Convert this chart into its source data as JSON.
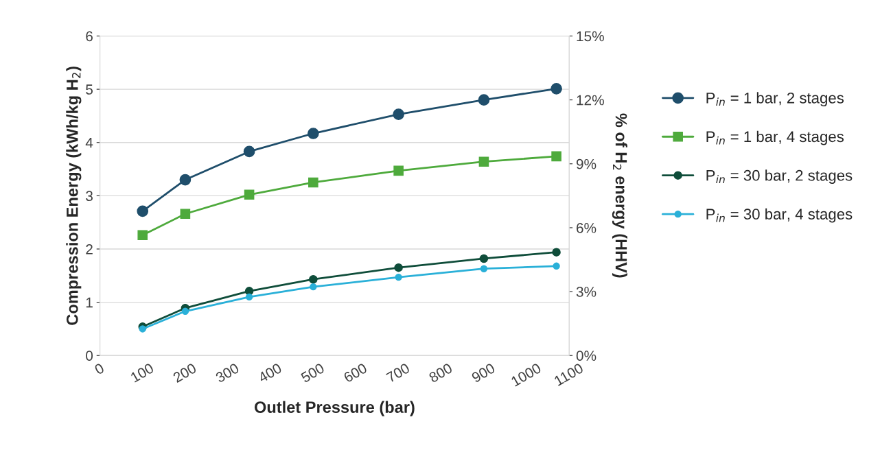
{
  "chart_data": {
    "type": "line",
    "xlabel": "Outlet Pressure (bar)",
    "ylabel": "Compression Energy (kWh/kg H$_{2}$)",
    "y2label": "% of H$_{2}$ energy (HHV)",
    "x": [
      100,
      200,
      350,
      500,
      700,
      900,
      1070
    ],
    "xlim": [
      0,
      1100
    ],
    "xticks": [
      0,
      100,
      200,
      300,
      400,
      500,
      600,
      700,
      800,
      900,
      1000,
      1100
    ],
    "ylim": [
      0,
      6
    ],
    "yticks": [
      0,
      1,
      2,
      3,
      4,
      5,
      6
    ],
    "y2lim": [
      0,
      15
    ],
    "y2ticks": [
      {
        "value": 0,
        "label": "0%"
      },
      {
        "value": 3,
        "label": "3%"
      },
      {
        "value": 6,
        "label": "6%"
      },
      {
        "value": 9,
        "label": "9%"
      },
      {
        "value": 12,
        "label": "12%"
      },
      {
        "value": 15,
        "label": "15%"
      }
    ],
    "grid": "y",
    "legend": "right",
    "line_style": "solid",
    "series": [
      {
        "name": "P$_{in}$ = 1 bar, 2 stages",
        "color": "#1f4e6b",
        "marker": "circle",
        "values": [
          2.71,
          3.3,
          3.83,
          4.17,
          4.53,
          4.8,
          5.01
        ]
      },
      {
        "name": "P$_{in}$ = 1 bar, 4 stages",
        "color": "#4eaa3c",
        "marker": "square",
        "values": [
          2.26,
          2.66,
          3.02,
          3.25,
          3.47,
          3.64,
          3.74
        ]
      },
      {
        "name": "P$_{in}$ = 30 bar, 2 stages",
        "color": "#0f4d3a",
        "marker": "circle",
        "values": [
          0.54,
          0.89,
          1.21,
          1.43,
          1.65,
          1.82,
          1.94
        ]
      },
      {
        "name": "P$_{in}$ = 30 bar, 4 stages",
        "color": "#2ab0d8",
        "marker": "circle",
        "values": [
          0.5,
          0.83,
          1.1,
          1.29,
          1.47,
          1.63,
          1.68
        ]
      }
    ]
  }
}
